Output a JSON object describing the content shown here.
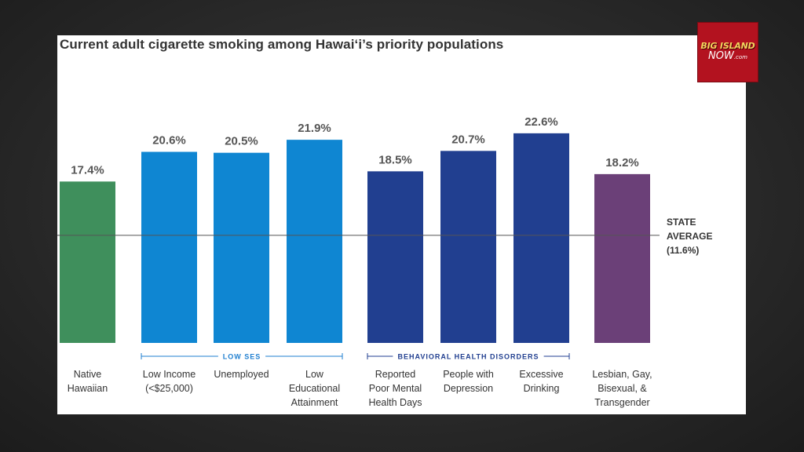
{
  "chart_data": {
    "type": "bar",
    "title": "Current adult cigarette smoking among Hawai‘i’s priority populations",
    "categories": [
      [
        "Native",
        "Hawaiian"
      ],
      [
        "Low Income",
        "(<$25,000)"
      ],
      [
        "Unemployed"
      ],
      [
        "Low",
        "Educational",
        "Attainment"
      ],
      [
        "Reported",
        "Poor Mental",
        "Health Days"
      ],
      [
        "People with",
        "Depression"
      ],
      [
        "Excessive",
        "Drinking"
      ],
      [
        "Lesbian, Gay,",
        "Bisexual, &",
        "Transgender"
      ]
    ],
    "values": [
      17.4,
      20.6,
      20.5,
      21.9,
      18.5,
      20.7,
      22.6,
      18.2
    ],
    "value_labels": [
      "17.4%",
      "20.6%",
      "20.5%",
      "21.9%",
      "18.5%",
      "20.7%",
      "22.6%",
      "18.2%"
    ],
    "bar_colors": [
      "#3f8f5c",
      "#0f86d2",
      "#0f86d2",
      "#0f86d2",
      "#213f90",
      "#213f90",
      "#213f90",
      "#6b4078"
    ],
    "groups": [
      {
        "label": "LOW SES",
        "from": 1,
        "to": 3,
        "color": "#1f7fd0"
      },
      {
        "label": "BEHAVIORAL HEALTH DISORDERS",
        "from": 4,
        "to": 6,
        "color": "#213f90"
      }
    ],
    "reference_line": {
      "value": 11.6,
      "label": [
        "STATE",
        "AVERAGE",
        "(11.6%)"
      ]
    },
    "ylim": [
      0,
      25
    ],
    "xlabel": "",
    "ylabel": ""
  },
  "logo": {
    "line1": "BIG ISLAND",
    "line2": "NOW",
    "suffix": ".com"
  }
}
